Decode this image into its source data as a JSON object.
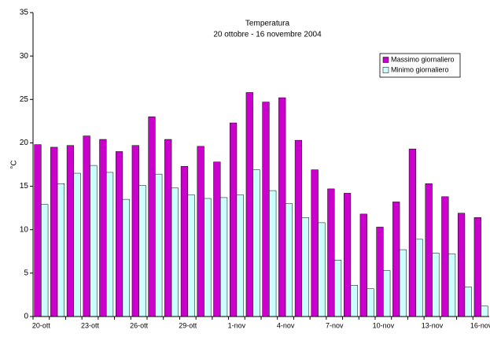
{
  "chart_data": {
    "type": "bar",
    "title": "Temperatura",
    "subtitle": "20 ottobre - 16 novembre 2004",
    "y_label": "°C",
    "categories": [
      "20-ott",
      null,
      null,
      "23-ott",
      null,
      null,
      "26-ott",
      null,
      null,
      "29-ott",
      null,
      null,
      "1-nov",
      null,
      null,
      "4-nov",
      null,
      null,
      "7-nov",
      null,
      null,
      "10-nov",
      null,
      null,
      "13-nov",
      null,
      null,
      "16-nov"
    ],
    "series": [
      {
        "name": "Massimo giornaliero",
        "color": "#cc00cc",
        "values": [
          19.8,
          19.5,
          19.7,
          20.8,
          20.4,
          19.0,
          19.7,
          23.0,
          20.4,
          17.3,
          19.6,
          17.8,
          22.3,
          25.8,
          24.7,
          25.2,
          20.3,
          16.9,
          14.7,
          14.2,
          11.8,
          10.3,
          13.2,
          19.3,
          15.3,
          13.8,
          11.9,
          11.4
        ]
      },
      {
        "name": "Minimo giornaliero",
        "color": "#ccffff",
        "values": [
          12.9,
          15.3,
          16.5,
          17.4,
          16.6,
          13.5,
          15.1,
          16.4,
          14.8,
          14.0,
          13.6,
          13.7,
          14.0,
          16.9,
          14.5,
          13.0,
          11.4,
          10.8,
          6.5,
          3.6,
          3.2,
          5.3,
          7.7,
          8.9,
          7.3,
          7.2,
          3.4,
          1.2
        ]
      }
    ],
    "ylim": [
      0,
      35
    ],
    "yticks": [
      0,
      5,
      10,
      15,
      20,
      25,
      30,
      35
    ],
    "grid": false,
    "legend": "upper right"
  }
}
